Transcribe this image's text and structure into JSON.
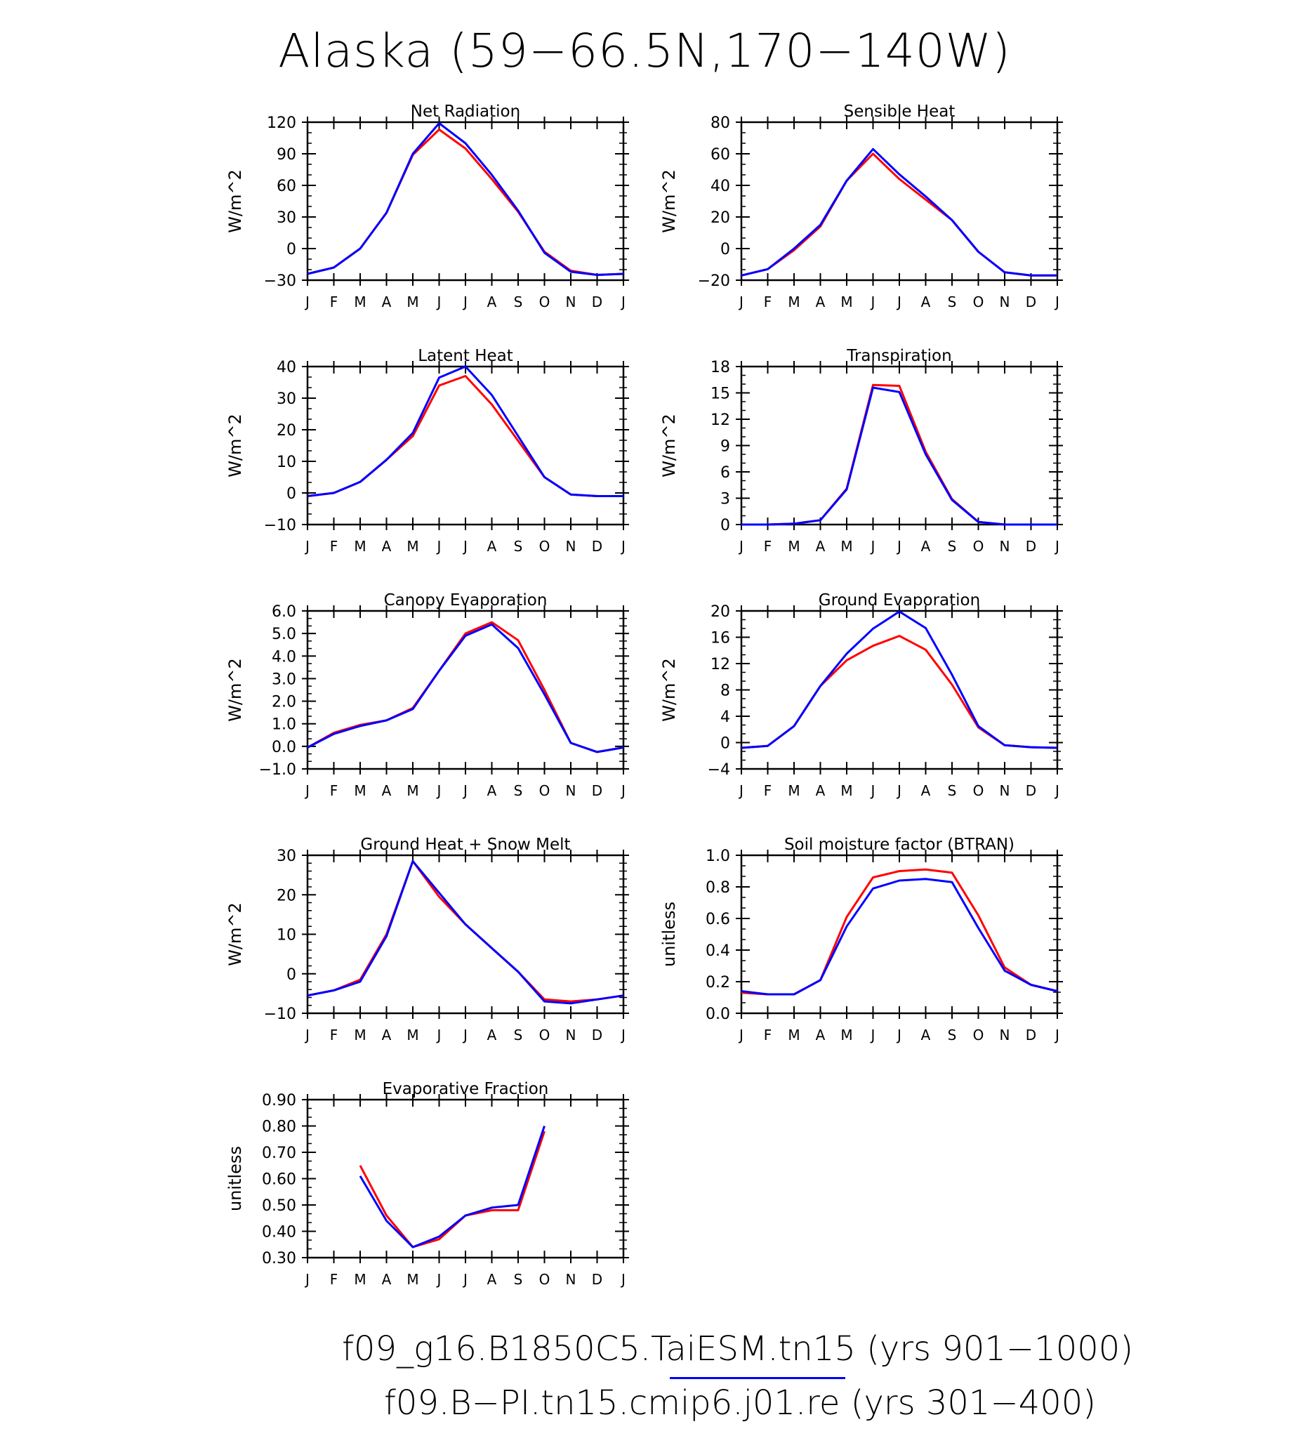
{
  "title": "Alaska (59−66.5N,170−140W)",
  "colors": {
    "series_1": "#0000ff",
    "series_2": "#ff0000",
    "axis": "#000000"
  },
  "legend": {
    "line1": "f09_g16.B1850C5.TaiESM.tn15 (yrs 901−1000)",
    "line2": "f09.B−PI.tn15.cmip6.j01.re (yrs 301−400)"
  },
  "chart_data": [
    {
      "type": "line",
      "title": "Net Radiation",
      "ylabel": "W/m^2",
      "ylim": [
        -30,
        120
      ],
      "yticks": [
        "−30",
        "0",
        "30",
        "60",
        "90",
        "120"
      ],
      "yticks_values": [
        -30,
        0,
        30,
        60,
        90,
        120
      ],
      "categories": [
        "J",
        "F",
        "M",
        "A",
        "M",
        "J",
        "J",
        "A",
        "S",
        "O",
        "N",
        "D",
        "J"
      ],
      "series": [
        {
          "color": "blue",
          "values": [
            -24,
            -18,
            0,
            34,
            90,
            119,
            100,
            70,
            36,
            -4,
            -22,
            -25,
            -24
          ]
        },
        {
          "color": "red",
          "values": [
            -24,
            -18,
            0,
            34,
            89,
            113,
            95,
            66,
            35,
            -3,
            -21,
            -25,
            -24
          ]
        }
      ]
    },
    {
      "type": "line",
      "title": "Sensible Heat",
      "ylabel": "W/m^2",
      "ylim": [
        -20,
        80
      ],
      "yticks": [
        "−20",
        "0",
        "20",
        "40",
        "60",
        "80"
      ],
      "yticks_values": [
        -20,
        0,
        20,
        40,
        60,
        80
      ],
      "categories": [
        "J",
        "F",
        "M",
        "A",
        "M",
        "J",
        "J",
        "A",
        "S",
        "O",
        "N",
        "D",
        "J"
      ],
      "series": [
        {
          "color": "blue",
          "values": [
            -17,
            -13,
            0,
            15,
            43,
            63,
            47,
            33,
            18,
            -2,
            -15,
            -17,
            -17
          ]
        },
        {
          "color": "red",
          "values": [
            -17,
            -13,
            -1,
            14,
            43,
            60,
            44,
            31,
            18,
            -2,
            -15,
            -17,
            -17
          ]
        }
      ]
    },
    {
      "type": "line",
      "title": "Latent Heat",
      "ylabel": "W/m^2",
      "ylim": [
        -10,
        40
      ],
      "yticks": [
        "−10",
        "0",
        "10",
        "20",
        "30",
        "40"
      ],
      "yticks_values": [
        -10,
        0,
        10,
        20,
        30,
        40
      ],
      "categories": [
        "J",
        "F",
        "M",
        "A",
        "M",
        "J",
        "J",
        "A",
        "S",
        "O",
        "N",
        "D",
        "J"
      ],
      "series": [
        {
          "color": "blue",
          "values": [
            -1,
            0,
            3.5,
            10.5,
            19,
            36.5,
            40,
            31,
            18,
            5,
            -0.5,
            -1,
            -1
          ]
        },
        {
          "color": "red",
          "values": [
            -1,
            0,
            3.5,
            10.5,
            18,
            34,
            37,
            28,
            16.5,
            5,
            -0.5,
            -1,
            -1
          ]
        }
      ]
    },
    {
      "type": "line",
      "title": "Transpiration",
      "ylabel": "W/m^2",
      "ylim": [
        0,
        18
      ],
      "yticks": [
        "0",
        "3",
        "6",
        "9",
        "12",
        "15",
        "18"
      ],
      "yticks_values": [
        0,
        3,
        6,
        9,
        12,
        15,
        18
      ],
      "categories": [
        "J",
        "F",
        "M",
        "A",
        "M",
        "J",
        "J",
        "A",
        "S",
        "O",
        "N",
        "D",
        "J"
      ],
      "series": [
        {
          "color": "blue",
          "values": [
            0,
            0,
            0.1,
            0.5,
            4.0,
            15.6,
            15.1,
            8.0,
            2.8,
            0.3,
            0,
            0,
            0
          ]
        },
        {
          "color": "red",
          "values": [
            0,
            0,
            0.1,
            0.5,
            4.1,
            15.9,
            15.8,
            8.3,
            2.9,
            0.3,
            0,
            0,
            0
          ]
        }
      ]
    },
    {
      "type": "line",
      "title": "Canopy Evaporation",
      "ylabel": "W/m^2",
      "ylim": [
        -1.0,
        6.0
      ],
      "yticks": [
        "−1.0",
        "0.0",
        "1.0",
        "2.0",
        "3.0",
        "4.0",
        "5.0",
        "6.0"
      ],
      "yticks_values": [
        -1,
        0,
        1,
        2,
        3,
        4,
        5,
        6
      ],
      "categories": [
        "J",
        "F",
        "M",
        "A",
        "M",
        "J",
        "J",
        "A",
        "S",
        "O",
        "N",
        "D",
        "J"
      ],
      "series": [
        {
          "color": "blue",
          "values": [
            -0.05,
            0.55,
            0.9,
            1.15,
            1.65,
            3.35,
            4.9,
            5.4,
            4.35,
            2.3,
            0.15,
            -0.25,
            -0.05
          ]
        },
        {
          "color": "red",
          "values": [
            -0.05,
            0.6,
            0.95,
            1.15,
            1.7,
            3.35,
            5.0,
            5.5,
            4.7,
            2.5,
            0.15,
            -0.25,
            -0.05
          ]
        }
      ]
    },
    {
      "type": "line",
      "title": "Ground Evaporation",
      "ylabel": "W/m^2",
      "ylim": [
        -4,
        20
      ],
      "yticks": [
        "−4",
        "0",
        "4",
        "8",
        "12",
        "16",
        "20"
      ],
      "yticks_values": [
        -4,
        0,
        4,
        8,
        12,
        16,
        20
      ],
      "categories": [
        "J",
        "F",
        "M",
        "A",
        "M",
        "J",
        "J",
        "A",
        "S",
        "O",
        "N",
        "D",
        "J"
      ],
      "series": [
        {
          "color": "blue",
          "values": [
            -0.8,
            -0.5,
            2.5,
            8.6,
            13.5,
            17.3,
            19.9,
            17.4,
            10.3,
            2.5,
            -0.4,
            -0.7,
            -0.8
          ]
        },
        {
          "color": "red",
          "values": [
            -0.8,
            -0.5,
            2.5,
            8.6,
            12.5,
            14.7,
            16.2,
            14.1,
            8.8,
            2.3,
            -0.4,
            -0.7,
            -0.8
          ]
        }
      ]
    },
    {
      "type": "line",
      "title": "Ground Heat + Snow Melt",
      "ylabel": "W/m^2",
      "ylim": [
        -10,
        30
      ],
      "yticks": [
        "−10",
        "0",
        "10",
        "20",
        "30"
      ],
      "yticks_values": [
        -10,
        0,
        10,
        20,
        30
      ],
      "categories": [
        "J",
        "F",
        "M",
        "A",
        "M",
        "J",
        "J",
        "A",
        "S",
        "O",
        "N",
        "D",
        "J"
      ],
      "series": [
        {
          "color": "blue",
          "values": [
            -5.5,
            -4.2,
            -2,
            9.5,
            28.5,
            20.5,
            12.5,
            6.5,
            0.5,
            -7,
            -7.5,
            -6.5,
            -5.5
          ]
        },
        {
          "color": "red",
          "values": [
            -5.5,
            -4.2,
            -1.5,
            10,
            28.5,
            19.5,
            12.5,
            6.5,
            0.5,
            -6.5,
            -7,
            -6.5,
            -5.5
          ]
        }
      ]
    },
    {
      "type": "line",
      "title": "Soil moisture factor (BTRAN)",
      "ylabel": "unitless",
      "ylim": [
        0.0,
        1.0
      ],
      "yticks": [
        "0.0",
        "0.2",
        "0.4",
        "0.6",
        "0.8",
        "1.0"
      ],
      "yticks_values": [
        0,
        0.2,
        0.4,
        0.6,
        0.8,
        1.0
      ],
      "categories": [
        "J",
        "F",
        "M",
        "A",
        "M",
        "J",
        "J",
        "A",
        "S",
        "O",
        "N",
        "D",
        "J"
      ],
      "series": [
        {
          "color": "blue",
          "values": [
            0.14,
            0.12,
            0.12,
            0.21,
            0.55,
            0.79,
            0.84,
            0.85,
            0.83,
            0.54,
            0.27,
            0.18,
            0.14
          ]
        },
        {
          "color": "red",
          "values": [
            0.13,
            0.12,
            0.12,
            0.21,
            0.61,
            0.86,
            0.9,
            0.91,
            0.89,
            0.62,
            0.29,
            0.18,
            0.14
          ]
        }
      ]
    },
    {
      "type": "line",
      "title": "Evaporative Fraction",
      "ylabel": "unitless",
      "ylim": [
        0.3,
        0.9
      ],
      "yticks": [
        "0.30",
        "0.40",
        "0.50",
        "0.60",
        "0.70",
        "0.80",
        "0.90"
      ],
      "yticks_values": [
        0.3,
        0.4,
        0.5,
        0.6,
        0.7,
        0.8,
        0.9
      ],
      "categories": [
        "J",
        "F",
        "M",
        "A",
        "M",
        "J",
        "J",
        "A",
        "S",
        "O",
        "N",
        "D",
        "J"
      ],
      "series": [
        {
          "color": "blue",
          "values": [
            null,
            null,
            0.61,
            0.44,
            0.34,
            0.38,
            0.46,
            0.49,
            0.5,
            0.8,
            null,
            null,
            null
          ]
        },
        {
          "color": "red",
          "values": [
            null,
            null,
            0.65,
            0.46,
            0.34,
            0.37,
            0.46,
            0.48,
            0.48,
            0.78,
            null,
            null,
            null
          ]
        }
      ]
    }
  ]
}
